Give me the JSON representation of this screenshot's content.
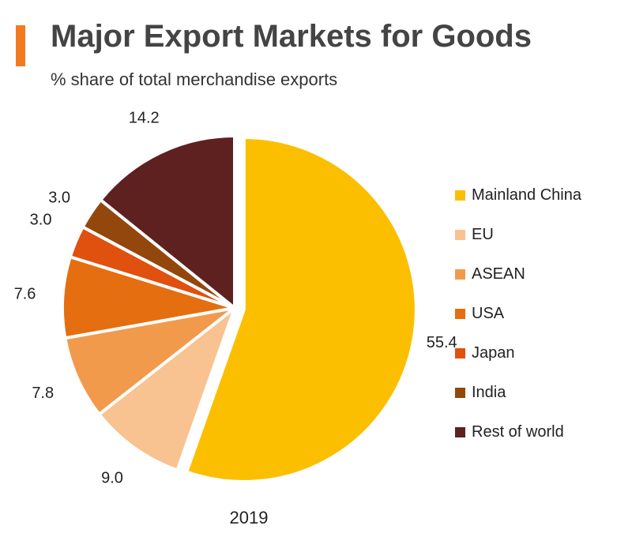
{
  "header": {
    "title": "Major Export Markets for Goods",
    "subtitle": "% share of total merchandise exports",
    "accent_color": "#f47a20"
  },
  "chart_data": {
    "type": "pie",
    "title": "Major Export Markets for Goods",
    "subtitle": "% share of total merchandise exports",
    "xlabel": "2019",
    "legend_position": "right",
    "slices": [
      {
        "name": "Mainland China",
        "value": 55.4,
        "label": "55.4",
        "color": "#fbbf00",
        "exploded": true
      },
      {
        "name": "EU",
        "value": 9.0,
        "label": "9.0",
        "color": "#f8c291",
        "exploded": false
      },
      {
        "name": "ASEAN",
        "value": 7.8,
        "label": "7.8",
        "color": "#f29a4c",
        "exploded": false
      },
      {
        "name": "USA",
        "value": 7.6,
        "label": "7.6",
        "color": "#e56e10",
        "exploded": false
      },
      {
        "name": "Japan",
        "value": 3.0,
        "label": "3.0",
        "color": "#e0500f",
        "exploded": false
      },
      {
        "name": "India",
        "value": 3.0,
        "label": "3.0",
        "color": "#94470c",
        "exploded": false
      },
      {
        "name": "Rest of world",
        "value": 14.2,
        "label": "14.2",
        "color": "#5e2120",
        "exploded": false
      }
    ]
  },
  "footer": {
    "year": "2019"
  }
}
